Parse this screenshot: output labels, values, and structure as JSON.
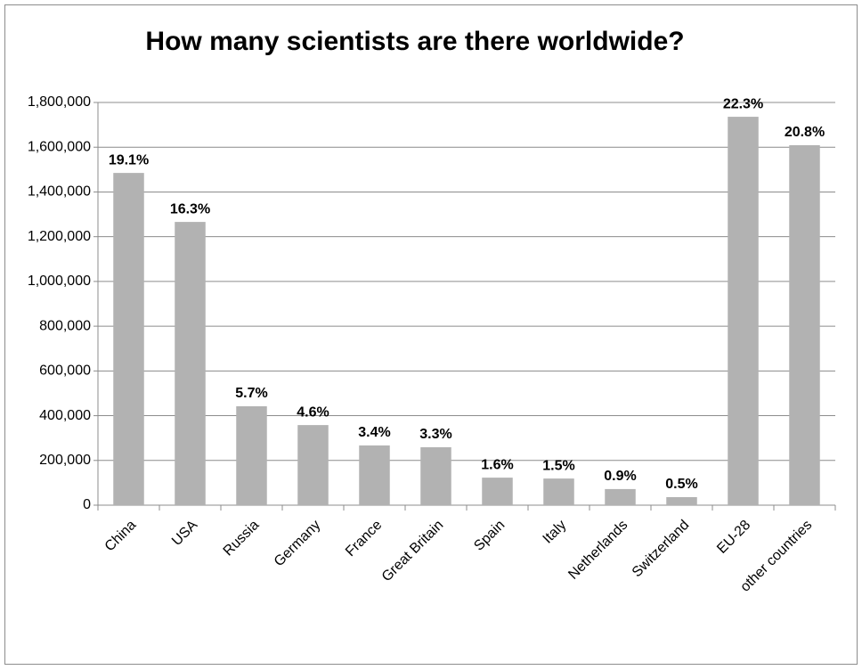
{
  "chart_data": {
    "type": "bar",
    "title": "How many scientists are there worldwide?",
    "categories": [
      "China",
      "USA",
      "Russia",
      "Germany",
      "France",
      "Great Britain",
      "Spain",
      "Italy",
      "Netherlands",
      "Switzerland",
      "EU-28",
      "other countries"
    ],
    "values": [
      1485000,
      1266000,
      442000,
      358000,
      267000,
      259000,
      123000,
      119000,
      72000,
      36000,
      1736000,
      1609000
    ],
    "share_labels": [
      "19.1%",
      "16.3%",
      "5.7%",
      "4.6%",
      "3.4%",
      "3.3%",
      "1.6%",
      "1.5%",
      "0.9%",
      "0.5%",
      "22.3%",
      "20.8%"
    ],
    "color": "#b2b2b2",
    "ylim": [
      0,
      1800000
    ],
    "yticks": [
      0,
      {
        "value": 200000,
        "label": "200,000"
      },
      {
        "value": 400000,
        "label": "400,000"
      },
      {
        "value": 600000,
        "label": "600,000"
      },
      {
        "value": 800000,
        "label": "800,000"
      },
      {
        "value": 1000000,
        "label": "1,000,000"
      },
      {
        "value": 1200000,
        "label": "1,200,000"
      },
      {
        "value": 1400000,
        "label": "1,400,000"
      },
      {
        "value": 1600000,
        "label": "1,600,000"
      },
      {
        "value": 1800000,
        "label": "1,800,000"
      }
    ],
    "grid": true
  }
}
